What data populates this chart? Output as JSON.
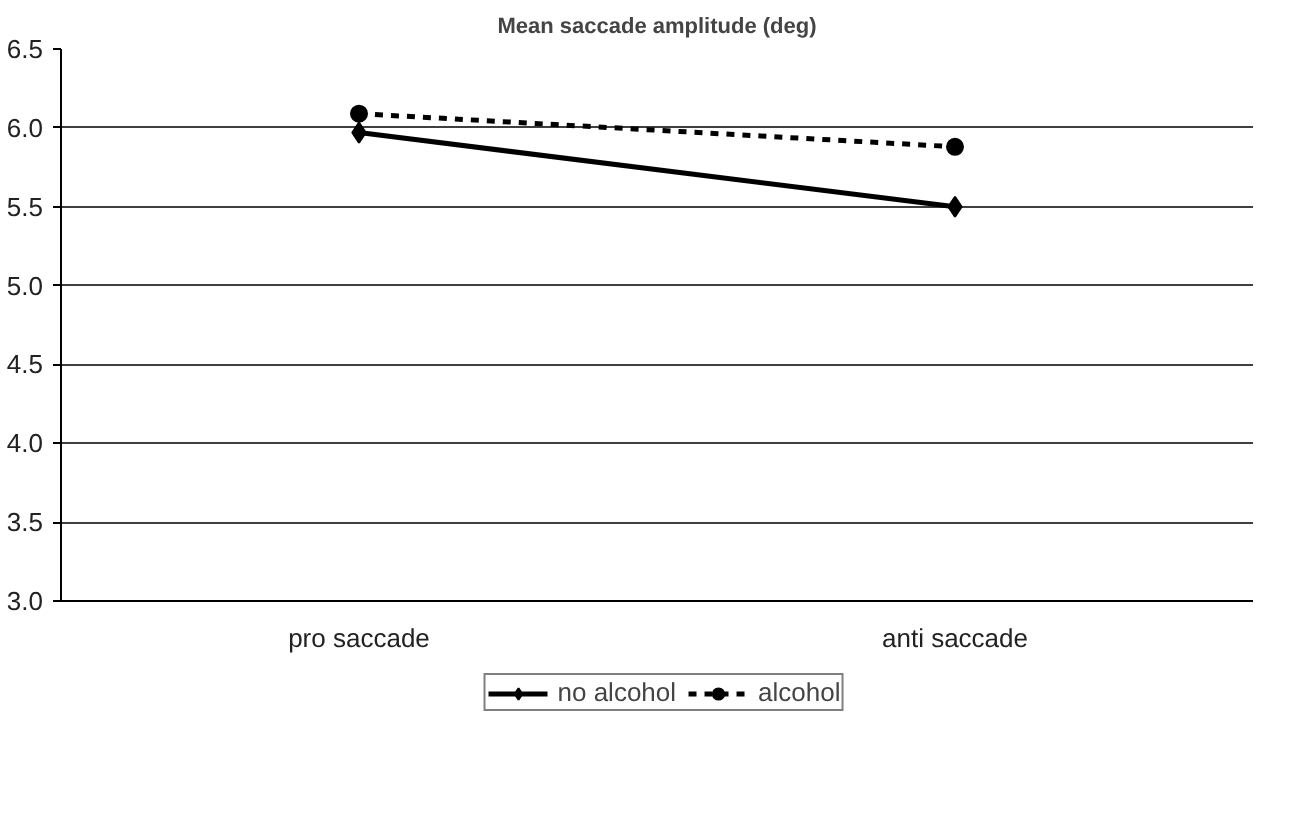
{
  "chart_data": {
    "type": "line",
    "title": "Mean saccade amplitude (deg)",
    "categories": [
      "pro saccade",
      "anti saccade"
    ],
    "series": [
      {
        "name": "no alcohol",
        "color": "#000000",
        "values": [
          5.97,
          5.5
        ],
        "marker": "diamond",
        "line_style": "solid"
      },
      {
        "name": "alcohol",
        "color": "#000000",
        "values": [
          6.09,
          5.88
        ],
        "marker": "circle",
        "line_style": "dotted"
      }
    ],
    "ylim": [
      3.0,
      6.5
    ],
    "yticks": [
      {
        "value": 3.0,
        "label": "3.0"
      },
      {
        "value": 3.5,
        "label": "3.5"
      },
      {
        "value": 4.0,
        "label": "4.0"
      },
      {
        "value": 4.5,
        "label": "4.5"
      },
      {
        "value": 5.0,
        "label": "5.0"
      },
      {
        "value": 5.5,
        "label": "5.5"
      },
      {
        "value": 6.0,
        "label": "6.0"
      },
      {
        "value": 6.5,
        "label": "6.5"
      }
    ],
    "grid": "y",
    "legend": "bottom"
  }
}
